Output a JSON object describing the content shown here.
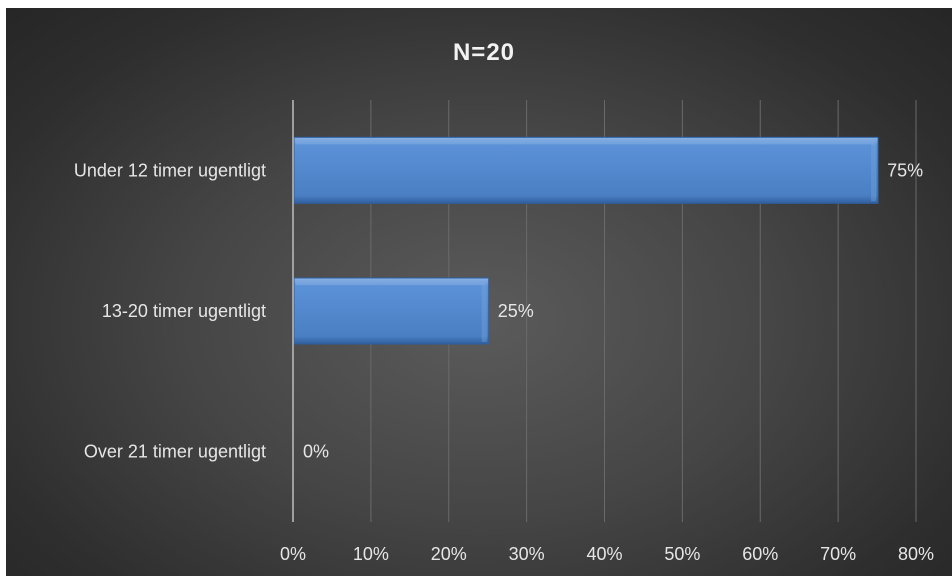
{
  "colors": {
    "bar_fill": "#4f86cc",
    "bar_light": "#7fa9e0",
    "bar_dark": "#2f5f9e",
    "gridline": "#6a6a6a",
    "axis_line": "#bdbdbd",
    "text": "#e6e6e6"
  },
  "chart_data": {
    "type": "bar",
    "orientation": "horizontal",
    "title": "N=20",
    "categories": [
      "Under 12 timer ugentligt",
      "13-20 timer ugentligt",
      "Over 21 timer ugentligt"
    ],
    "values": [
      75,
      25,
      0
    ],
    "data_labels": [
      "75%",
      "25%",
      "0%"
    ],
    "xlim": [
      0,
      80
    ],
    "x_ticks": [
      0,
      10,
      20,
      30,
      40,
      50,
      60,
      70,
      80
    ],
    "x_tick_labels": [
      "0%",
      "10%",
      "20%",
      "30%",
      "40%",
      "50%",
      "60%",
      "70%",
      "80%"
    ],
    "grid": true,
    "legend": "none"
  }
}
